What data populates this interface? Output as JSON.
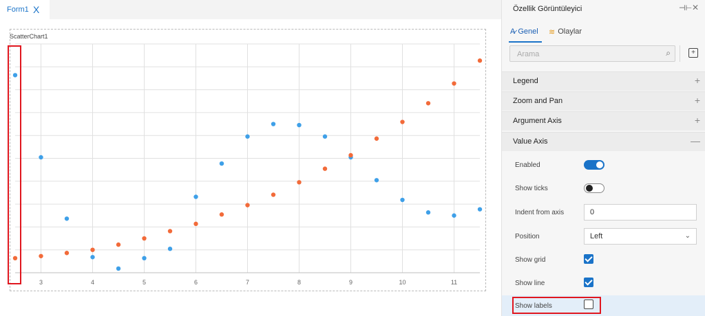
{
  "document_tab": {
    "label": "Form1",
    "close_glyph": "X"
  },
  "chart_control": {
    "name": "ScatterChart1",
    "chart_data": {
      "type": "scatter",
      "title": "",
      "x_ticks": [
        "3",
        "4",
        "5",
        "6",
        "7",
        "8",
        "9",
        "10",
        "11"
      ],
      "xlim": [
        2.5,
        11.5
      ],
      "ylim": [
        -1,
        21
      ],
      "grid": true,
      "series": [
        {
          "color": "#3fa0e8",
          "points": [
            [
              2.5,
              18
            ],
            [
              3,
              10.1
            ],
            [
              3.5,
              4.2
            ],
            [
              4,
              0.5
            ],
            [
              4.5,
              -0.6
            ],
            [
              5,
              0.4
            ],
            [
              5.5,
              1.3
            ],
            [
              6,
              6.3
            ],
            [
              6.5,
              9.5
            ],
            [
              7,
              12.1
            ],
            [
              7.5,
              13.3
            ],
            [
              8,
              13.2
            ],
            [
              8.5,
              12.1
            ],
            [
              9,
              10.1
            ],
            [
              9.5,
              7.9
            ],
            [
              10,
              6
            ],
            [
              10.5,
              4.8
            ],
            [
              11,
              4.5
            ],
            [
              11.5,
              5.1
            ]
          ]
        },
        {
          "color": "#f26b3a",
          "points": [
            [
              2.5,
              0.4
            ],
            [
              3,
              0.6
            ],
            [
              3.5,
              0.9
            ],
            [
              4,
              1.2
            ],
            [
              4.5,
              1.7
            ],
            [
              5,
              2.3
            ],
            [
              5.5,
              3
            ],
            [
              6,
              3.7
            ],
            [
              6.5,
              4.6
            ],
            [
              7,
              5.5
            ],
            [
              7.5,
              6.5
            ],
            [
              8,
              7.7
            ],
            [
              8.5,
              9
            ],
            [
              9,
              10.3
            ],
            [
              9.5,
              11.9
            ],
            [
              10,
              13.5
            ],
            [
              10.5,
              15.3
            ],
            [
              11,
              17.2
            ],
            [
              11.5,
              19.4
            ]
          ]
        }
      ]
    }
  },
  "properties_panel": {
    "title": "Özellik Görüntüleyici",
    "pin_icon": "pin-icon",
    "close_glyph": "✕",
    "tabs": [
      {
        "label": "Genel",
        "icon": "text-style-icon",
        "active": true
      },
      {
        "label": "Olaylar",
        "icon": "events-icon",
        "active": false
      }
    ],
    "search_placeholder": "Arama",
    "sections": [
      {
        "label": "Legend",
        "toggle": "+"
      },
      {
        "label": "Zoom and Pan",
        "toggle": "+"
      },
      {
        "label": "Argument Axis",
        "toggle": "+"
      },
      {
        "label": "Value Axis",
        "toggle": "—"
      }
    ],
    "value_axis": {
      "enabled": {
        "label": "Enabled",
        "value": true
      },
      "show_ticks": {
        "label": "Show ticks",
        "value": false
      },
      "indent_from_axis": {
        "label": "Indent from axis",
        "value": "0"
      },
      "position": {
        "label": "Position",
        "value": "Left"
      },
      "show_grid": {
        "label": "Show grid",
        "value": true
      },
      "show_line": {
        "label": "Show line",
        "value": true
      },
      "show_labels": {
        "label": "Show labels",
        "value": false
      }
    },
    "accent_color": "#1a73c8",
    "highlight_color": "#e0161e"
  }
}
